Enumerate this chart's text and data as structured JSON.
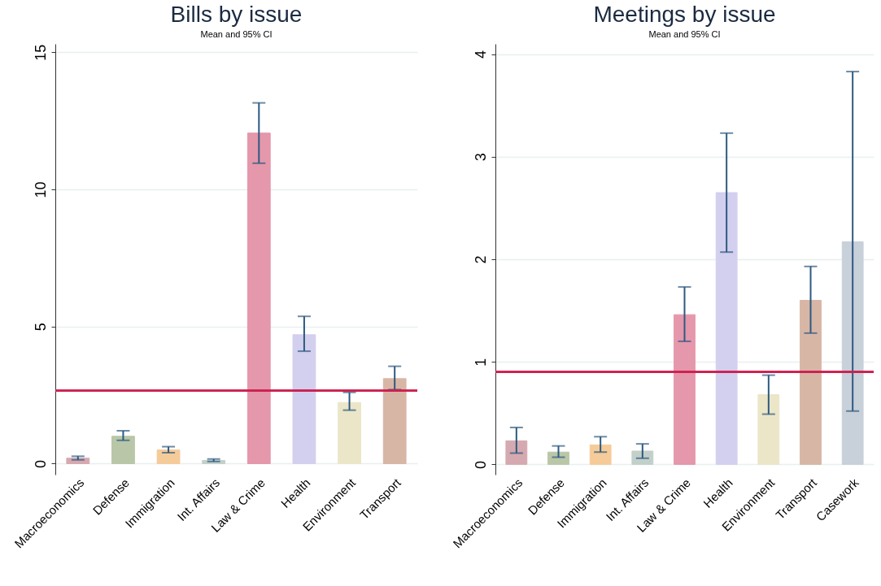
{
  "chart_data": [
    {
      "type": "bar",
      "title": "Bills by issue",
      "subtitle": "Mean and 95% CI",
      "categories": [
        "Macroeconomics",
        "Defense",
        "Immigration",
        "Int. Affairs",
        "Law & Crime",
        "Health",
        "Environment",
        "Transport"
      ],
      "values": [
        0.2,
        1.0,
        0.5,
        0.12,
        12.05,
        4.7,
        2.23,
        3.1
      ],
      "colors": [
        "#d5a9b0",
        "#b9c7a8",
        "#f5cb99",
        "#c3d0ca",
        "#e597ab",
        "#d3cfee",
        "#ebe6c8",
        "#d8b6a6"
      ],
      "errors": [
        [
          0.14,
          0.27
        ],
        [
          0.85,
          1.2
        ],
        [
          0.4,
          0.62
        ],
        [
          0.08,
          0.17
        ],
        [
          10.95,
          13.15
        ],
        [
          4.1,
          5.37
        ],
        [
          1.95,
          2.6
        ],
        [
          2.7,
          3.55
        ]
      ],
      "ylim": [
        -0.4,
        15.3
      ],
      "yticks": [
        0,
        5,
        10,
        15
      ],
      "grid": "y",
      "ref_lines": [
        {
          "axis": "y",
          "value": 2.66,
          "color": "#cc2050"
        }
      ]
    },
    {
      "type": "bar",
      "title": "Meetings by issue",
      "subtitle": "Mean and 95% CI",
      "categories": [
        "Macroeconomics",
        "Defense",
        "Immigration",
        "Int. Affairs",
        "Law & Crime",
        "Health",
        "Environment",
        "Transport",
        "Casework"
      ],
      "values": [
        0.23,
        0.12,
        0.19,
        0.13,
        1.46,
        2.65,
        0.68,
        1.6,
        2.17
      ],
      "colors": [
        "#d5a9b0",
        "#b9c7a8",
        "#f5cb99",
        "#c3d0ca",
        "#e597ab",
        "#d3cfee",
        "#ebe6c8",
        "#d8b6a6",
        "#c8d0da"
      ],
      "errors": [
        [
          0.11,
          0.36
        ],
        [
          0.07,
          0.18
        ],
        [
          0.12,
          0.27
        ],
        [
          0.06,
          0.2
        ],
        [
          1.2,
          1.73
        ],
        [
          2.07,
          3.23
        ],
        [
          0.49,
          0.87
        ],
        [
          1.28,
          1.93
        ],
        [
          0.52,
          3.83
        ]
      ],
      "ylim": [
        -0.1,
        4.1
      ],
      "yticks": [
        0,
        1,
        2,
        3,
        4
      ],
      "grid": "y",
      "ref_lines": [
        {
          "axis": "y",
          "value": 0.9,
          "color": "#cc2050"
        }
      ]
    }
  ]
}
